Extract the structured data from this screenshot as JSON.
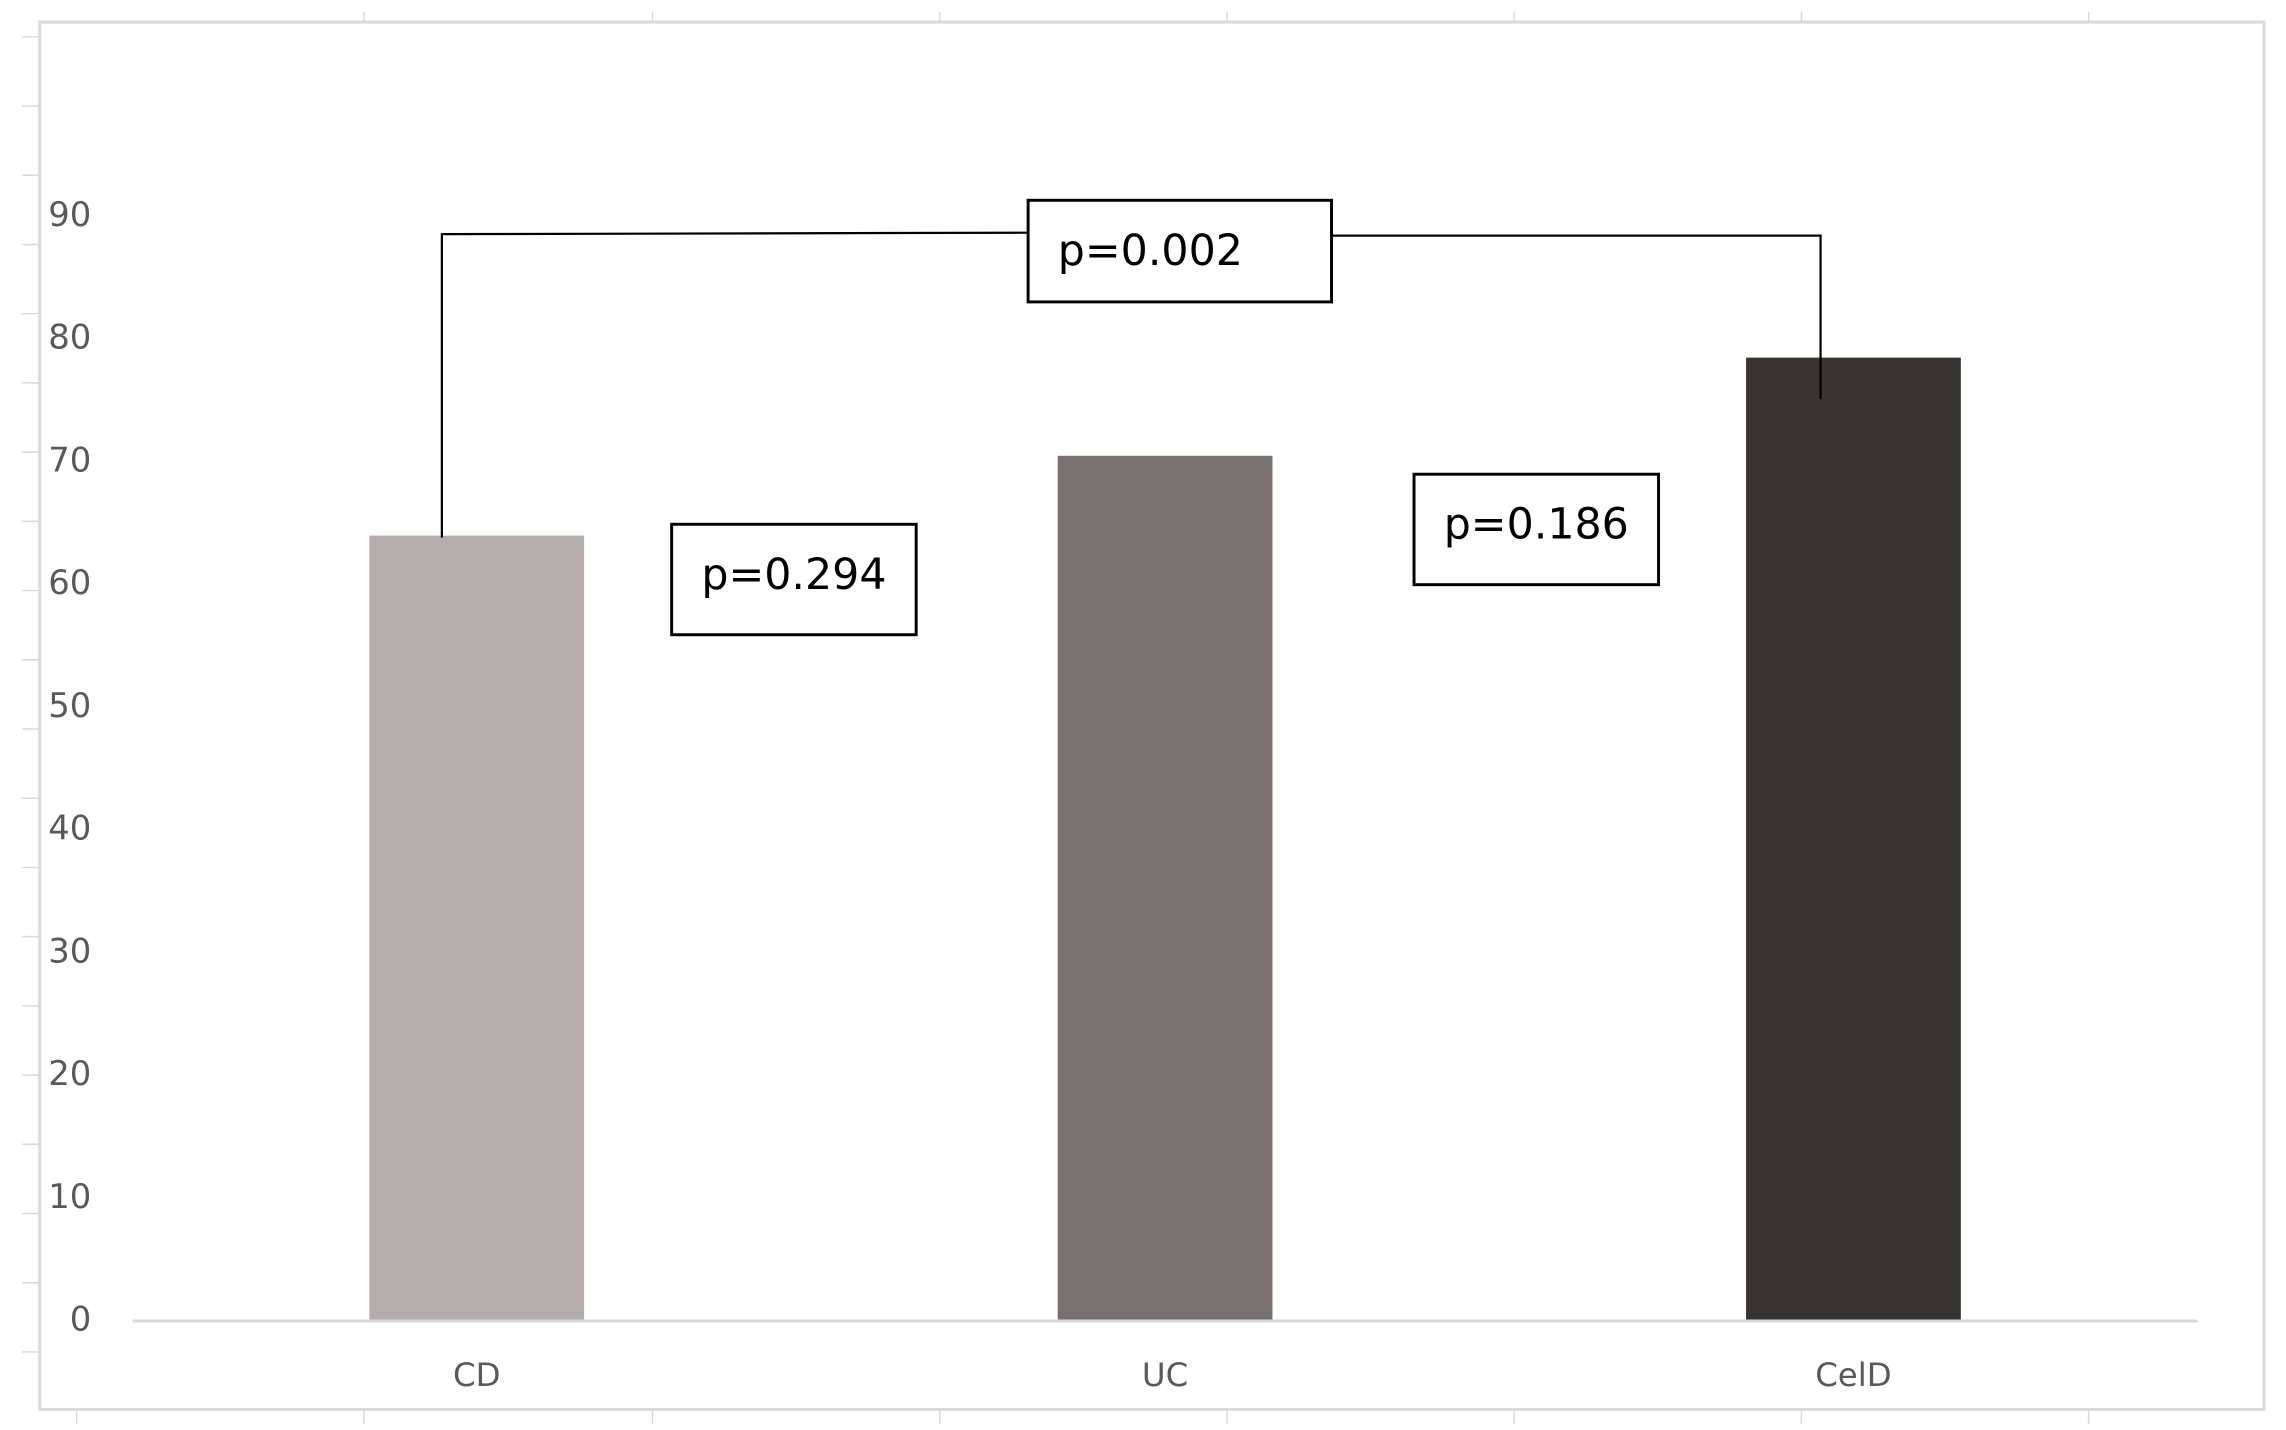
{
  "chart_data": {
    "type": "bar",
    "categories": [
      "CD",
      "UC",
      "CelD"
    ],
    "values": [
      64,
      70.5,
      78.5
    ],
    "colors": [
      "#b3aeac",
      "#76706e",
      "#383432"
    ],
    "ylim": [
      0,
      90
    ],
    "yticks": [
      0,
      10,
      20,
      30,
      40,
      50,
      60,
      70,
      80,
      90
    ],
    "grid": false,
    "annotations": [
      "p=0.294",
      "p=0.186",
      "p=0.002"
    ]
  }
}
